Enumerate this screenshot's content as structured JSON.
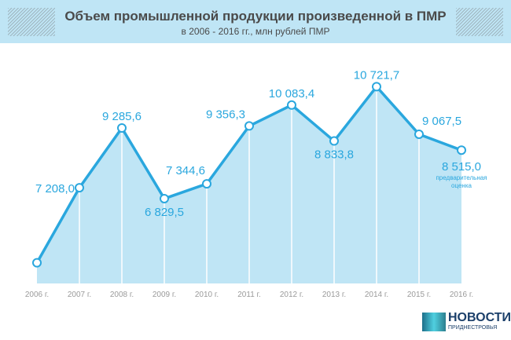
{
  "header": {
    "title": "Объем промышленной продукции произведенной в ПМР",
    "subtitle": "в 2006 - 2016 гг., млн рублей ПМР"
  },
  "chart_data": {
    "type": "area",
    "categories": [
      "2006 г.",
      "2007 г.",
      "2008 г.",
      "2009 г.",
      "2010 г.",
      "2011 г.",
      "2012 г.",
      "2013 г.",
      "2014 г.",
      "2015 г.",
      "2016 г."
    ],
    "values": [
      4600,
      7208.0,
      9285.6,
      6829.5,
      7344.6,
      9356.3,
      10083.4,
      8833.8,
      10721.7,
      9067.5,
      8515.0
    ],
    "labels": [
      "",
      "7 208,0",
      "9 285,6",
      "6 829,5",
      "7 344,6",
      "9 356,3",
      "10 083,4",
      "8 833,8",
      "10 721,7",
      "9 067,5",
      "8 515,0"
    ],
    "note_2016": "предварительная оценка",
    "ylim": [
      3880,
      12000
    ],
    "colors": {
      "line": "#2aa7de",
      "fill": "#bfe5f5",
      "label": "#2aa7de",
      "tick": "#9a9a9a"
    }
  },
  "logo": {
    "title": "НОВОСТИ",
    "subtitle": "ПРИДНЕСТРОВЬЯ"
  }
}
